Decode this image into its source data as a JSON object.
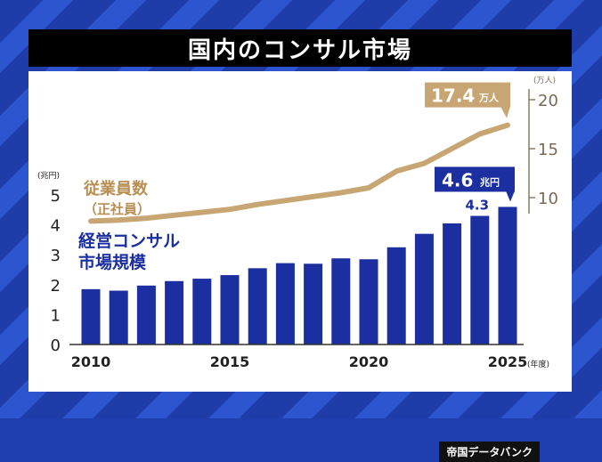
{
  "title": "国内のコンサル市場",
  "source": "帝国データバンク",
  "colors": {
    "bar": "#1b2fa0",
    "line": "#c8a673",
    "left_label": "#1b2fa0",
    "right_label": "#b98e52",
    "axis_text": "#222222",
    "right_axis_text": "#7a6a55"
  },
  "chart_data": {
    "type": "bar+line",
    "x": [
      2010,
      2011,
      2012,
      2013,
      2014,
      2015,
      2016,
      2017,
      2018,
      2019,
      2020,
      2021,
      2022,
      2023,
      2024,
      2025
    ],
    "x_ticks": [
      "2010",
      "2015",
      "2020",
      "2025"
    ],
    "x_unit": "(年度)",
    "left_axis": {
      "unit": "(兆円)",
      "ticks": [
        0,
        1,
        2,
        3,
        4,
        5
      ],
      "ylim": [
        0,
        5.2
      ]
    },
    "right_axis": {
      "unit": "(万人)",
      "ticks": [
        10,
        15,
        20
      ],
      "ylim": [
        7.5,
        21
      ]
    },
    "series": [
      {
        "name": "経営コンサル市場規模",
        "name_lines": [
          "経営コンサル",
          "市場規模"
        ],
        "type": "bar",
        "axis": "left",
        "values": [
          1.85,
          1.8,
          1.97,
          2.12,
          2.2,
          2.32,
          2.55,
          2.72,
          2.7,
          2.88,
          2.85,
          3.25,
          3.7,
          4.05,
          4.3,
          4.6
        ]
      },
      {
        "name": "従業員数(正社員)",
        "name_lines": [
          "従業員数",
          "（正社員）"
        ],
        "type": "line",
        "axis": "right",
        "values": [
          7.6,
          7.7,
          7.9,
          8.2,
          8.5,
          8.8,
          9.3,
          9.7,
          10.1,
          10.5,
          11.0,
          12.7,
          13.5,
          15.0,
          16.5,
          17.4
        ]
      }
    ],
    "annotations": {
      "bar_last_label": {
        "value": "4.6",
        "unit": "兆円"
      },
      "bar_prev_label": "4.3",
      "line_last_label": {
        "value": "17.4",
        "unit": "万人"
      }
    }
  }
}
